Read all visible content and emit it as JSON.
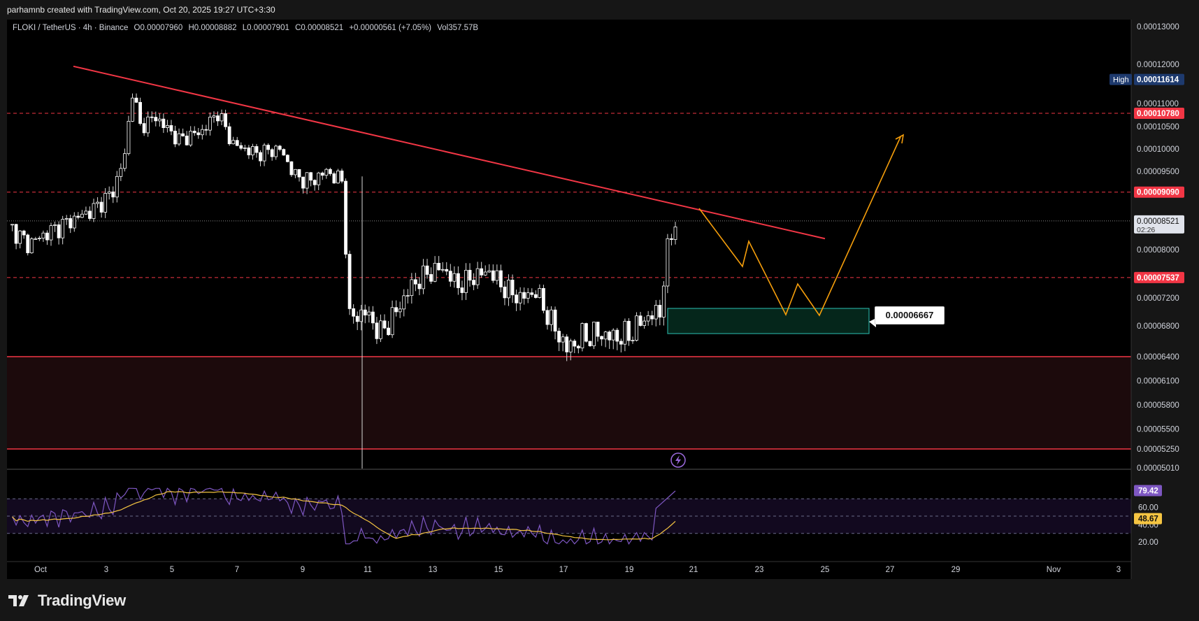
{
  "header": {
    "attribution": "parhamnb created with TradingView.com, Oct 20, 2025 19:27 UTC+3:30"
  },
  "legend": {
    "symbol": "FLOKI / TetherUS · 4h · Binance",
    "open": "O0.00007960",
    "high": "H0.00008882",
    "low": "L0.00007901",
    "close": "C0.00008521",
    "change": "+0.00000561 (+7.05%)",
    "volume": "Vol357.57B"
  },
  "footer": {
    "brand": "TradingView"
  },
  "colors": {
    "background": "#000000",
    "level_red": "#f23645",
    "trendline": "#f23645",
    "zone_fill": "#1c0a0c",
    "demand_box": "#26a69a",
    "projection": "#f59e0b",
    "rsi_line": "#7e57c2",
    "rsi_ma": "#f5c542",
    "candle_up": "#ffffff",
    "candle_down": "#ffffff"
  },
  "chart_data": {
    "type": "candlestick",
    "title": "FLOKI / TetherUS · 4h · Binance",
    "price_axis_labels": [
      "0.00013000",
      "0.00012000",
      "0.00011000",
      "0.00010500",
      "0.00010000",
      "0.00009500",
      "0.00008000",
      "0.00007200",
      "0.00006800",
      "0.00006400",
      "0.00006100",
      "0.00005800",
      "0.00005500",
      "0.00005250",
      "0.00005010"
    ],
    "price_badges": [
      {
        "label": "High",
        "value": "0.00011614",
        "color": "#1e3a6e"
      },
      {
        "value": "0.00010780",
        "color": "#f23645"
      },
      {
        "value": "0.00009090",
        "color": "#f23645"
      },
      {
        "value": "0.00008521",
        "sub": "02:26",
        "color": "#e0e3eb"
      },
      {
        "value": "0.00007537",
        "color": "#f23645"
      }
    ],
    "horizontal_levels": [
      {
        "value": 0.0001078,
        "style": "dashed"
      },
      {
        "value": 9.09e-05,
        "style": "dashed"
      },
      {
        "value": 7.537e-05,
        "style": "dashed"
      },
      {
        "value": 6.4e-05,
        "style": "solid"
      },
      {
        "value": 5.25e-05,
        "style": "solid"
      }
    ],
    "support_zone": [
      5.25e-05,
      6.4e-05
    ],
    "demand_box": {
      "from": "Oct 20",
      "to": "Oct 26",
      "low": 6.7e-05,
      "high": 7.05e-05,
      "label": "0.00006667"
    },
    "trendline": {
      "from": [
        "Oct 2",
        0.0001195
      ],
      "to": [
        "Oct 25",
        8.2e-05
      ]
    },
    "time_axis_labels": [
      "Oct",
      "3",
      "5",
      "7",
      "9",
      "11",
      "13",
      "15",
      "17",
      "19",
      "21",
      "23",
      "25",
      "27",
      "29",
      "Nov",
      "3"
    ],
    "rsi": {
      "axis_labels": [
        "60.00",
        "40.00",
        "20.00"
      ],
      "current": "79.42",
      "ma": "48.67",
      "bands": [
        70,
        50,
        30
      ]
    }
  }
}
